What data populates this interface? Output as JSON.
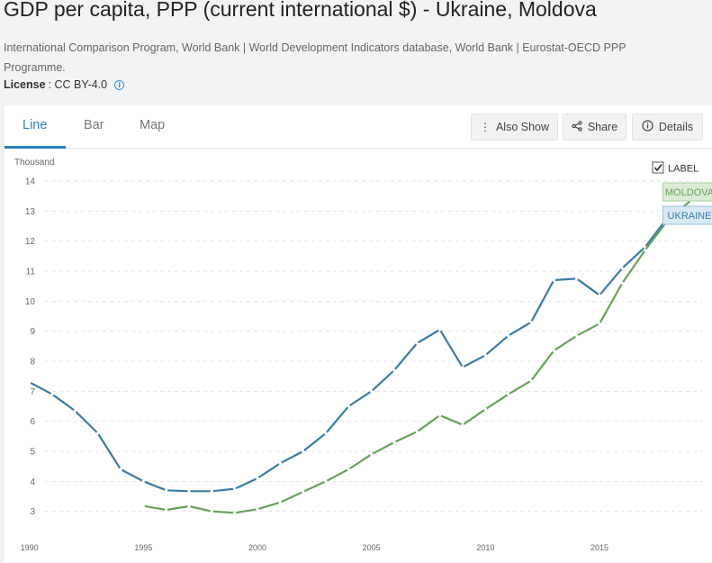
{
  "header": {
    "title": "GDP per capita, PPP (current international $) - Ukraine, Moldova",
    "sources": "International Comparison Program, World Bank | World Development Indicators database, World Bank | Eurostat-OECD PPP Programme.",
    "license_label": "License",
    "license_value": ": CC BY-4.0",
    "info_icon": "i"
  },
  "tabs": [
    {
      "label": "Line",
      "active": true
    },
    {
      "label": "Bar",
      "active": false
    },
    {
      "label": "Map",
      "active": false
    }
  ],
  "toolbar": {
    "also_show": "Also Show",
    "share": "Share",
    "details": "Details",
    "also_show_icon": "kebab-icon",
    "share_icon": "share-icon",
    "details_icon": "info-icon"
  },
  "label_toggle": {
    "text": "LABEL",
    "checked": true
  },
  "colors": {
    "ukraine": "#3a7ca5",
    "moldova": "#67a35a",
    "accent": "#2a7fc4"
  },
  "chart_data": {
    "type": "line",
    "ylabel": "Thousand",
    "ylim": [
      2.6,
      14
    ],
    "yticks": [
      3,
      4,
      5,
      6,
      7,
      8,
      9,
      10,
      11,
      12,
      13,
      14
    ],
    "xlim": [
      1989.5,
      2019.5
    ],
    "xticks": [
      1990,
      1995,
      2000,
      2005,
      2010,
      2015
    ],
    "grid": true,
    "legend": "end-of-line labels",
    "series": [
      {
        "name": "UKRAINE",
        "color": "#3a7ca5",
        "x": [
          1990,
          1991,
          1992,
          1993,
          1994,
          1995,
          1996,
          1997,
          1998,
          1999,
          2000,
          2001,
          2002,
          2003,
          2004,
          2005,
          2006,
          2007,
          2008,
          2009,
          2010,
          2011,
          2012,
          2013,
          2014,
          2015,
          2016,
          2017,
          2018
        ],
        "values": [
          7.3,
          6.9,
          6.35,
          5.6,
          4.4,
          4.0,
          3.7,
          3.67,
          3.67,
          3.75,
          4.1,
          4.6,
          5.0,
          5.6,
          6.5,
          7.0,
          7.7,
          8.6,
          9.05,
          7.8,
          8.2,
          8.85,
          9.3,
          10.7,
          10.75,
          10.2,
          11.1,
          11.8,
          12.8
        ]
      },
      {
        "name": "MOLDOVA",
        "color": "#67a35a",
        "x": [
          1995,
          1996,
          1997,
          1998,
          1999,
          2000,
          2001,
          2002,
          2003,
          2004,
          2005,
          2006,
          2007,
          2008,
          2009,
          2010,
          2011,
          2012,
          2013,
          2014,
          2015,
          2016,
          2017,
          2018,
          2019
        ],
        "values": [
          3.18,
          3.05,
          3.17,
          3.0,
          2.95,
          3.07,
          3.3,
          3.65,
          4.0,
          4.4,
          4.9,
          5.3,
          5.65,
          6.2,
          5.88,
          6.4,
          6.9,
          7.35,
          8.35,
          8.85,
          9.25,
          10.6,
          11.7,
          12.7,
          13.35
        ]
      }
    ]
  }
}
